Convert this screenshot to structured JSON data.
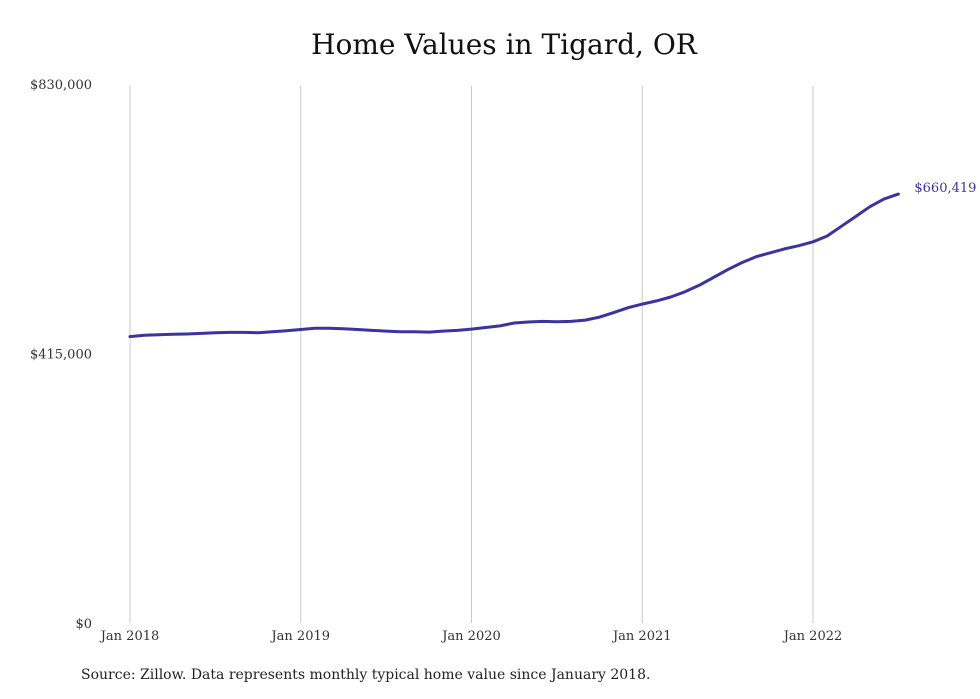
{
  "chart_data": {
    "type": "line",
    "title": "Home Values in Tigard, OR",
    "xlabel": "",
    "ylabel": "",
    "x_ticks": [
      "Jan 2018",
      "Jan 2019",
      "Jan 2020",
      "Jan 2021",
      "Jan 2022"
    ],
    "y_ticks": [
      "$830,000",
      "$415,000",
      "$0"
    ],
    "ylim": [
      0,
      830000
    ],
    "xlim": [
      "2018-01",
      "2022-05"
    ],
    "grid": "vertical",
    "series": [
      {
        "color": "#3a33a0",
        "end_label": "$660,419",
        "points": [
          [
            "2018-01",
            441000
          ],
          [
            "2018-02",
            443000
          ],
          [
            "2018-03",
            444000
          ],
          [
            "2018-04",
            444500
          ],
          [
            "2018-05",
            445000
          ],
          [
            "2018-06",
            446000
          ],
          [
            "2018-07",
            447000
          ],
          [
            "2018-08",
            447500
          ],
          [
            "2018-09",
            447500
          ],
          [
            "2018-10",
            447000
          ],
          [
            "2018-11",
            448500
          ],
          [
            "2018-12",
            450000
          ],
          [
            "2019-01",
            452000
          ],
          [
            "2019-02",
            454000
          ],
          [
            "2019-03",
            454000
          ],
          [
            "2019-04",
            453000
          ],
          [
            "2019-05",
            452000
          ],
          [
            "2019-06",
            450500
          ],
          [
            "2019-07",
            449500
          ],
          [
            "2019-08",
            448500
          ],
          [
            "2019-09",
            448500
          ],
          [
            "2019-10",
            448000
          ],
          [
            "2019-11",
            449500
          ],
          [
            "2019-12",
            450500
          ],
          [
            "2020-01",
            452500
          ],
          [
            "2020-02",
            455000
          ],
          [
            "2020-03",
            457500
          ],
          [
            "2020-04",
            462000
          ],
          [
            "2020-05",
            463500
          ],
          [
            "2020-06",
            464500
          ],
          [
            "2020-07",
            464000
          ],
          [
            "2020-08",
            464500
          ],
          [
            "2020-09",
            466500
          ],
          [
            "2020-10",
            471000
          ],
          [
            "2020-11",
            478000
          ],
          [
            "2020-12",
            485500
          ],
          [
            "2021-01",
            491000
          ],
          [
            "2021-02",
            496000
          ],
          [
            "2021-03",
            502000
          ],
          [
            "2021-04",
            510000
          ],
          [
            "2021-05",
            520000
          ],
          [
            "2021-06",
            532000
          ],
          [
            "2021-07",
            544000
          ],
          [
            "2021-08",
            555000
          ],
          [
            "2021-09",
            564000
          ],
          [
            "2021-10",
            570000
          ],
          [
            "2021-11",
            576000
          ],
          [
            "2021-12",
            581000
          ],
          [
            "2022-01",
            587000
          ],
          [
            "2022-02",
            596000
          ],
          [
            "2022-03",
            611000
          ],
          [
            "2022-04",
            626000
          ],
          [
            "2022-05",
            641000
          ],
          [
            "2022-06",
            653000
          ],
          [
            "2022-07",
            660419
          ]
        ]
      }
    ]
  },
  "source_note": "Source: Zillow. Data represents monthly typical home value since January 2018."
}
